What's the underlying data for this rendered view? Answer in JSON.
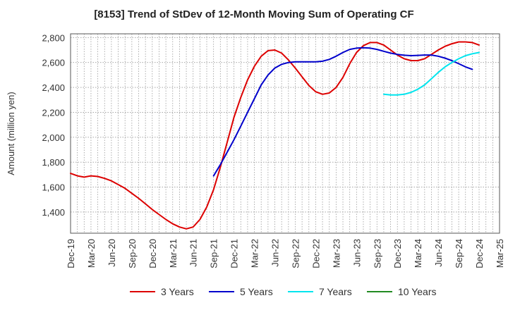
{
  "chart_data": {
    "type": "line",
    "title": "[8153]  Trend of StDev of 12-Month Moving Sum of Operating CF",
    "xlabel": "",
    "ylabel": "Amount (million yen)",
    "ylim": [
      1230,
      2830
    ],
    "yticks": [
      1400,
      1600,
      1800,
      2000,
      2200,
      2400,
      2600,
      2800
    ],
    "ytick_labels": [
      "1,400",
      "1,600",
      "1,800",
      "2,000",
      "2,200",
      "2,400",
      "2,600",
      "2,800"
    ],
    "xticks": [
      "Dec-19",
      "Mar-20",
      "Jun-20",
      "Sep-20",
      "Dec-20",
      "Mar-21",
      "Jun-21",
      "Sep-21",
      "Dec-21",
      "Mar-22",
      "Jun-22",
      "Sep-22",
      "Dec-22",
      "Mar-23",
      "Jun-23",
      "Sep-23",
      "Dec-23",
      "Mar-24",
      "Jun-24",
      "Sep-24",
      "Dec-24",
      "Mar-25"
    ],
    "x_start": "2019-12",
    "grid": true,
    "legend_position": "bottom",
    "series": [
      {
        "name": "3 Years",
        "color": "#dd0000",
        "start_index": 0,
        "values": [
          1710,
          1690,
          1680,
          1690,
          1685,
          1670,
          1650,
          1620,
          1590,
          1550,
          1510,
          1465,
          1420,
          1380,
          1340,
          1305,
          1280,
          1265,
          1280,
          1340,
          1440,
          1580,
          1760,
          1960,
          2160,
          2320,
          2460,
          2570,
          2650,
          2695,
          2700,
          2675,
          2620,
          2555,
          2485,
          2415,
          2365,
          2345,
          2355,
          2400,
          2480,
          2590,
          2680,
          2735,
          2760,
          2760,
          2740,
          2700,
          2660,
          2630,
          2615,
          2615,
          2630,
          2665,
          2700,
          2730,
          2750,
          2765,
          2765,
          2760,
          2740
        ]
      },
      {
        "name": "5 Years",
        "color": "#0000cc",
        "start_index": 21,
        "values": [
          1690,
          1780,
          1880,
          1980,
          2090,
          2200,
          2310,
          2420,
          2500,
          2555,
          2585,
          2600,
          2605,
          2605,
          2605,
          2605,
          2610,
          2625,
          2650,
          2680,
          2705,
          2715,
          2718,
          2715,
          2705,
          2690,
          2675,
          2665,
          2658,
          2655,
          2657,
          2660,
          2660,
          2650,
          2635,
          2615,
          2590,
          2565,
          2545
        ]
      },
      {
        "name": "7 Years",
        "color": "#00e5ee",
        "start_index": 46,
        "values": [
          2345,
          2340,
          2340,
          2345,
          2360,
          2385,
          2420,
          2470,
          2520,
          2565,
          2600,
          2630,
          2655,
          2670,
          2680
        ]
      },
      {
        "name": "10 Years",
        "color": "#228b22",
        "start_index": 0,
        "values": []
      }
    ]
  }
}
